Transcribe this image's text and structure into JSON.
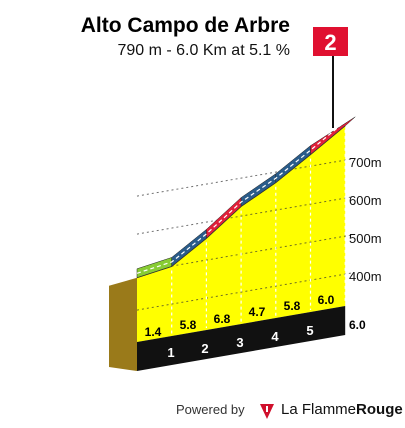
{
  "header": {
    "title": "Alto Campo de Arbre",
    "subtitle": "790 m - 6.0 Km at 5.1 %"
  },
  "stage_flag": {
    "label": "2",
    "color": "#e01030"
  },
  "footer": {
    "powered_by": "Powered by",
    "brand_part1": "La Flamme",
    "brand_part2": "Rouge",
    "brand_icon": "flame-icon",
    "brand_color": "#d0102c"
  },
  "colors": {
    "profile_fill": "#ffff00",
    "base": "#111111",
    "side": "#9a7a1a",
    "grade_low": "#88cc33",
    "grade_mid": "#2a5c8a",
    "grade_high": "#e0203a"
  },
  "chart_data": {
    "type": "area",
    "title": "Alto Campo de Arbre",
    "subtitle": "790 m - 6.0 Km at 5.1 %",
    "x_unit": "km",
    "y_unit": "m",
    "km_marks": [
      "1",
      "2",
      "3",
      "4",
      "5"
    ],
    "total_distance_label": "6.0",
    "segments": [
      {
        "km_start": 0,
        "km_end": 1,
        "gradient": 1.4,
        "gradient_label": "1.4",
        "band": "low"
      },
      {
        "km_start": 1,
        "km_end": 2,
        "gradient": 5.8,
        "gradient_label": "5.8",
        "band": "mid"
      },
      {
        "km_start": 2,
        "km_end": 3,
        "gradient": 6.8,
        "gradient_label": "6.8",
        "band": "high"
      },
      {
        "km_start": 3,
        "km_end": 4,
        "gradient": 4.7,
        "gradient_label": "4.7",
        "band": "mid"
      },
      {
        "km_start": 4,
        "km_end": 5,
        "gradient": 5.8,
        "gradient_label": "5.8",
        "band": "mid"
      },
      {
        "km_start": 5,
        "km_end": 6,
        "gradient": 6.0,
        "gradient_label": "6.0",
        "band": "high"
      }
    ],
    "profile": {
      "x": [
        0,
        1,
        2,
        3,
        4,
        5,
        6
      ],
      "y": [
        485,
        499,
        557,
        625,
        672,
        730,
        790
      ]
    },
    "y_ticks": [
      400,
      500,
      600,
      700
    ],
    "y_tick_labels": [
      "400m",
      "500m",
      "600m",
      "700m"
    ],
    "ylim": [
      316,
      790
    ],
    "grid": true
  }
}
